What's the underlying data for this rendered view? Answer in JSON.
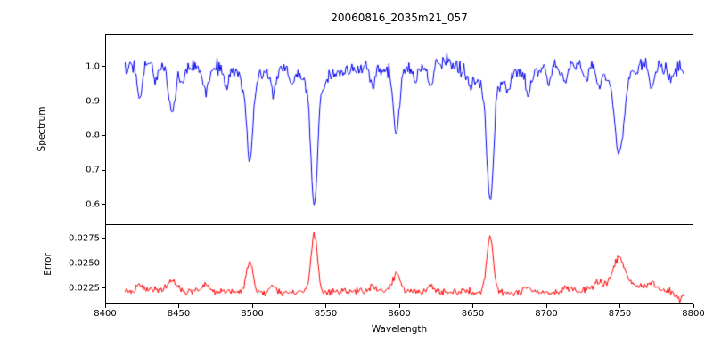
{
  "chart_data": {
    "type": "line",
    "title": "20060816_2035m21_057",
    "xlabel": "Wavelength",
    "xlim": [
      8400,
      8800
    ],
    "x_ticks": [
      8400,
      8450,
      8500,
      8550,
      8600,
      8650,
      8700,
      8750,
      8800
    ],
    "x_tick_labels": [
      "8400",
      "8450",
      "8500",
      "8550",
      "8600",
      "8650",
      "8700",
      "8750",
      "8800"
    ],
    "seed": 20060816,
    "x_range": [
      8413,
      8794
    ],
    "n_points": 560,
    "grid": false,
    "legend": "none",
    "panels": [
      {
        "name": "spectrum",
        "ylabel": "Spectrum",
        "color": "#0000ee",
        "ylim": [
          0.54,
          1.095
        ],
        "y_ticks": [
          1.0,
          0.9,
          0.8,
          0.7,
          0.6
        ],
        "y_tick_labels": [
          "1.0",
          "0.9",
          "0.8",
          "0.7",
          "0.6"
        ],
        "continuum": 1.003,
        "noise_sigma": 0.011,
        "absorption_lines": [
          {
            "center": 8498,
            "depth": 0.23,
            "width": 2.0,
            "wing_depth": 0.05,
            "wing_width": 8
          },
          {
            "center": 8542,
            "depth": 0.35,
            "width": 2.2,
            "wing_depth": 0.065,
            "wing_width": 10
          },
          {
            "center": 8662,
            "depth": 0.335,
            "width": 2.2,
            "wing_depth": 0.065,
            "wing_width": 10
          },
          {
            "center": 8750,
            "depth": 0.22,
            "width": 3.0,
            "wing_depth": 0.04,
            "wing_width": 9
          },
          {
            "center": 8598,
            "depth": 0.18,
            "width": 2.2,
            "wing_depth": 0.0,
            "wing_width": 6
          },
          {
            "center": 8445,
            "depth": 0.135,
            "width": 2.5,
            "wing_depth": 0.0,
            "wing_width": 6
          }
        ],
        "minor_lines": [
          [
            8423,
            0.1,
            1.6
          ],
          [
            8434,
            0.05,
            1.5
          ],
          [
            8452,
            0.05,
            1.5
          ],
          [
            8468,
            0.075,
            1.8
          ],
          [
            8482,
            0.05,
            1.5
          ],
          [
            8514,
            0.07,
            1.7
          ],
          [
            8527,
            0.04,
            1.5
          ],
          [
            8582,
            0.05,
            1.6
          ],
          [
            8611,
            0.04,
            1.5
          ],
          [
            8621,
            0.065,
            1.7
          ],
          [
            8648,
            0.04,
            1.5
          ],
          [
            8674,
            0.05,
            1.5
          ],
          [
            8688,
            0.075,
            1.8
          ],
          [
            8702,
            0.04,
            1.5
          ],
          [
            8713,
            0.05,
            1.6
          ],
          [
            8727,
            0.04,
            1.5
          ],
          [
            8736,
            0.05,
            1.6
          ],
          [
            8772,
            0.055,
            1.7
          ],
          [
            8785,
            0.04,
            1.5
          ]
        ]
      },
      {
        "name": "error",
        "ylabel": "Error",
        "color": "#ff0000",
        "ylim": [
          0.0209,
          0.0288
        ],
        "y_ticks": [
          0.0275,
          0.025,
          0.0225
        ],
        "y_tick_labels": [
          "0.0275",
          "0.0250",
          "0.0225"
        ],
        "baseline": 0.0221,
        "noise_sigma": 0.00018,
        "peaks": [
          [
            8423,
            0.0006,
            2.0
          ],
          [
            8445,
            0.0011,
            2.5
          ],
          [
            8468,
            0.0007,
            2.0
          ],
          [
            8498,
            0.0033,
            2.2
          ],
          [
            8514,
            0.0006,
            2.0
          ],
          [
            8542,
            0.0058,
            2.2
          ],
          [
            8582,
            0.0005,
            2.0
          ],
          [
            8598,
            0.0016,
            2.5
          ],
          [
            8621,
            0.0006,
            2.0
          ],
          [
            8662,
            0.0057,
            2.2
          ],
          [
            8688,
            0.0007,
            2.5
          ],
          [
            8713,
            0.0005,
            2.0
          ],
          [
            8736,
            0.0005,
            2.0
          ],
          [
            8750,
            0.0026,
            3.5,
            0.0008,
            12
          ],
          [
            8772,
            0.0007,
            2.5
          ],
          [
            8791,
            -0.0007,
            2.5
          ]
        ]
      }
    ]
  },
  "layout_text": {
    "note": ""
  }
}
